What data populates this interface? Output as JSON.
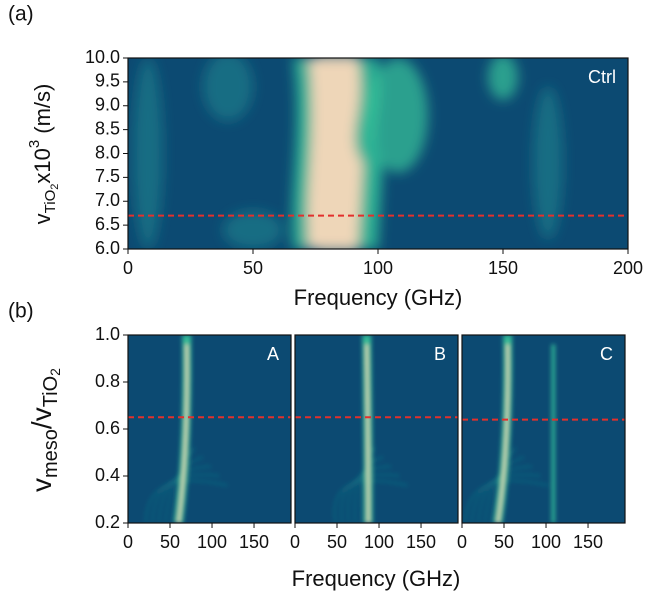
{
  "chart_data": [
    {
      "type": "heatmap",
      "panel_label": "(a)",
      "annotation": "Ctrl",
      "xlabel": "Frequency (GHz)",
      "ylabel_parts": [
        "v",
        "TiO",
        "2",
        "x10",
        "3",
        " (m/s)"
      ],
      "xlim": [
        0,
        200
      ],
      "xticks": [
        0,
        50,
        100,
        150,
        200
      ],
      "ylim": [
        6.0,
        10.0
      ],
      "yticks": [
        {
          "value": 6.0,
          "label": "6.0"
        },
        {
          "value": 6.5,
          "label": "6.5"
        },
        {
          "value": 7.0,
          "label": "7.0"
        },
        {
          "value": 7.5,
          "label": "7.5"
        },
        {
          "value": 8.0,
          "label": "8.0"
        },
        {
          "value": 8.5,
          "label": "8.5"
        },
        {
          "value": 9.0,
          "label": "9.0"
        },
        {
          "value": 9.5,
          "label": "9.5"
        },
        {
          "value": 10.0,
          "label": "10.0"
        }
      ],
      "reference_line": 6.7,
      "reference_color": "#e3302c",
      "colormap": [
        "#0c4a72",
        "#1a7c8a",
        "#36c49a",
        "#eed6b8"
      ]
    },
    {
      "type": "heatmap",
      "panel_label": "(b)",
      "xlabel": "Frequency (GHz)",
      "ylabel_parts": [
        "v",
        "meso",
        "/v",
        "TiO",
        "2"
      ],
      "xlim": [
        0,
        194
      ],
      "xticks": [
        0,
        50,
        100,
        150
      ],
      "ylim": [
        0.2,
        1.0
      ],
      "yticks": [
        {
          "value": 0.2,
          "label": "0.2"
        },
        {
          "value": 0.4,
          "label": "0.4"
        },
        {
          "value": 0.6,
          "label": "0.6"
        },
        {
          "value": 0.8,
          "label": "0.8"
        },
        {
          "value": 1.0,
          "label": "1.0"
        }
      ],
      "panels": [
        {
          "label": "A",
          "reference_line": 0.65
        },
        {
          "label": "B",
          "reference_line": 0.65
        },
        {
          "label": "C",
          "reference_line": 0.64
        }
      ],
      "reference_color": "#e3302c",
      "colormap": [
        "#0c4a72",
        "#1a7c8a",
        "#36c49a",
        "#eed6b8"
      ]
    }
  ]
}
